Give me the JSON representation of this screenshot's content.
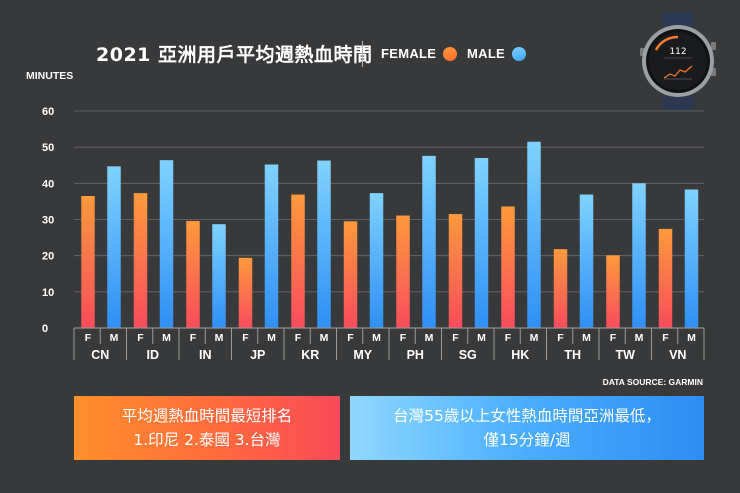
{
  "header": {
    "title": "2021 亞洲用戶平均週熱血時間",
    "legend_female": "FEMALE",
    "legend_male": "MALE",
    "y_unit": "MINUTES"
  },
  "source": "DATA SOURCE: GARMIN",
  "watch": {
    "value": "112"
  },
  "notes": {
    "left_line1": "平均週熱血時間最短排名",
    "left_line2": "1.印尼 2.泰國 3.台灣",
    "right_line1": "台灣55歲以上女性熱血時間亞洲最低，",
    "right_line2": "僅15分鐘/週"
  },
  "colors": {
    "female_top": "#ff9a3c",
    "female_bottom": "#f84c5c",
    "male_top": "#7fd2ff",
    "male_bottom": "#2f8ff5",
    "grid": "#6b6c6e",
    "text": "#ffffff"
  },
  "chart_data": {
    "type": "bar",
    "title": "2021 亞洲用戶平均週熱血時間",
    "ylabel": "MINUTES",
    "xlabel": "",
    "ylim": [
      0,
      65
    ],
    "yticks": [
      "0",
      "10",
      "20",
      "30",
      "40",
      "50",
      "60"
    ],
    "grid": true,
    "legend_position": "top",
    "categories": [
      "CN",
      "ID",
      "IN",
      "JP",
      "KR",
      "MY",
      "PH",
      "SG",
      "HK",
      "TH",
      "TW",
      "VN"
    ],
    "sub_labels": [
      "F",
      "M"
    ],
    "series": [
      {
        "name": "FEMALE",
        "values": [
          36.5,
          37.3,
          29.6,
          19.4,
          36.9,
          29.5,
          31.1,
          31.5,
          33.6,
          21.8,
          20.1,
          27.4
        ]
      },
      {
        "name": "MALE",
        "values": [
          44.7,
          46.4,
          28.7,
          45.2,
          46.3,
          37.3,
          47.6,
          47.0,
          51.5,
          36.9,
          40.0,
          38.3
        ]
      }
    ]
  }
}
